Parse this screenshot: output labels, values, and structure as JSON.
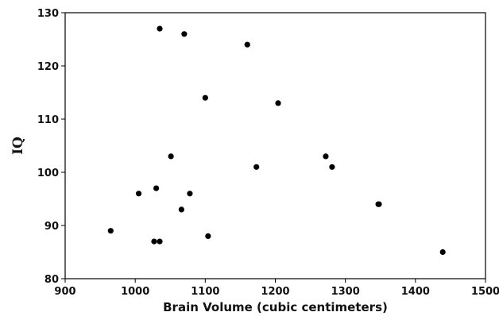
{
  "chart_data": {
    "type": "scatter",
    "title": "",
    "xlabel": "Brain Volume (cubic centimeters)",
    "ylabel": "IQ",
    "xlim": [
      900,
      1500
    ],
    "ylim": [
      80,
      130
    ],
    "xticks": [
      900,
      1000,
      1100,
      1200,
      1300,
      1400,
      1500
    ],
    "yticks": [
      80,
      90,
      100,
      110,
      120,
      130
    ],
    "grid": false,
    "legend": "none",
    "marker_color": "#000000",
    "points": [
      {
        "x": 965,
        "y": 89
      },
      {
        "x": 1005,
        "y": 96
      },
      {
        "x": 1027,
        "y": 87
      },
      {
        "x": 1030,
        "y": 97
      },
      {
        "x": 1035,
        "y": 87
      },
      {
        "x": 1035,
        "y": 127
      },
      {
        "x": 1051,
        "y": 103
      },
      {
        "x": 1066,
        "y": 93
      },
      {
        "x": 1070,
        "y": 126
      },
      {
        "x": 1078,
        "y": 96
      },
      {
        "x": 1100,
        "y": 114
      },
      {
        "x": 1104,
        "y": 88
      },
      {
        "x": 1160,
        "y": 124
      },
      {
        "x": 1173,
        "y": 101
      },
      {
        "x": 1204,
        "y": 113
      },
      {
        "x": 1272,
        "y": 103
      },
      {
        "x": 1281,
        "y": 101
      },
      {
        "x": 1347,
        "y": 94
      },
      {
        "x": 1348,
        "y": 94
      },
      {
        "x": 1439,
        "y": 85
      }
    ]
  }
}
